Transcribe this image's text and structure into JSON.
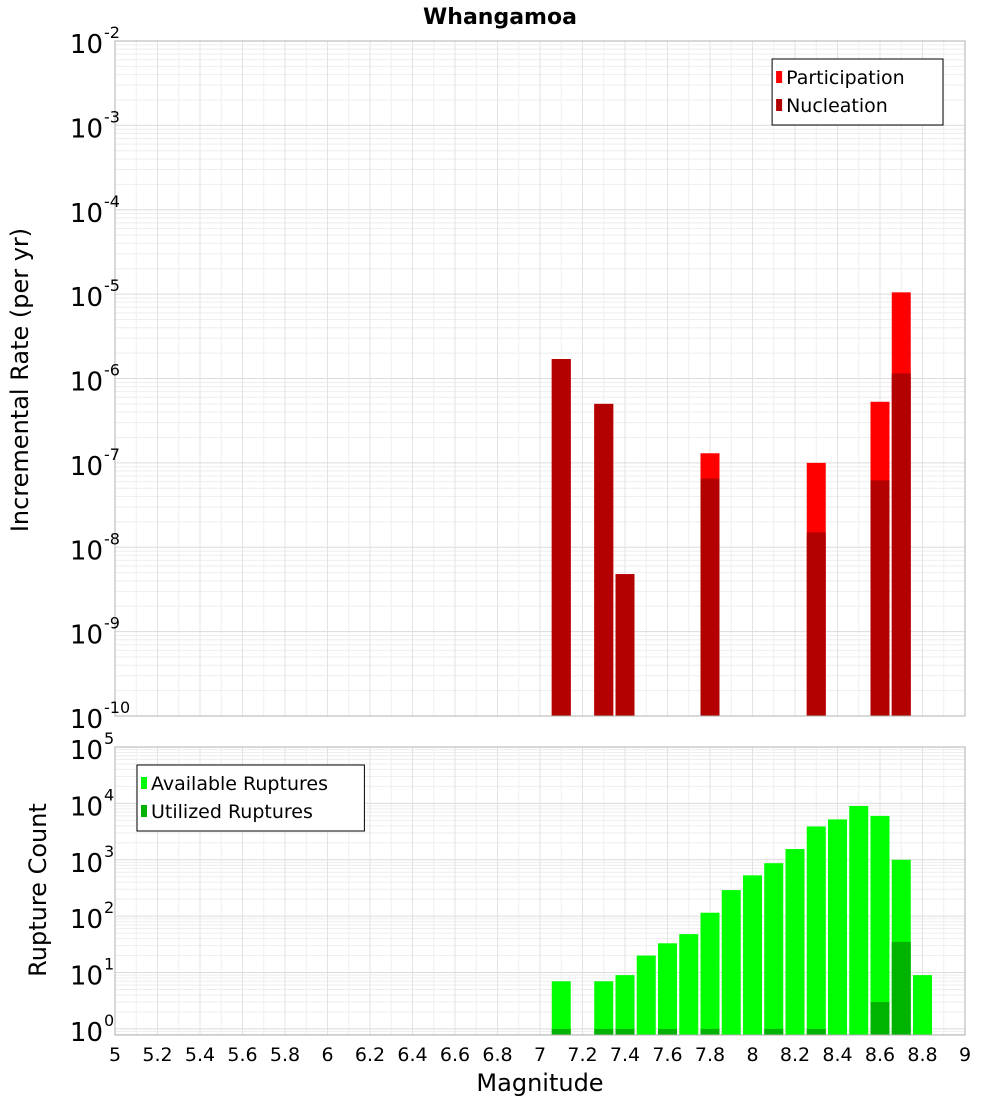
{
  "chart_data": [
    {
      "type": "bar",
      "title": "Whangamoa",
      "ylabel": "Incremental Rate (per yr)",
      "xlabel": "",
      "yscale": "log",
      "ylim": [
        1e-10,
        0.01
      ],
      "xlim": [
        5,
        9
      ],
      "ytick_exponents": [
        -10,
        -9,
        -8,
        -7,
        -6,
        -5,
        -4,
        -3,
        -2
      ],
      "grid": true,
      "legend": {
        "position": "top-right",
        "entries": [
          {
            "label": "Participation",
            "color": "#ff0000"
          },
          {
            "label": "Nucleation",
            "color": "#b30000"
          }
        ]
      },
      "series": [
        {
          "name": "Participation",
          "color": "#ff0000",
          "x": [
            7.1,
            7.3,
            7.4,
            7.8,
            8.3,
            8.6,
            8.7
          ],
          "values": [
            1.7e-06,
            5e-07,
            4.8e-09,
            1.3e-07,
            1e-07,
            5.3e-07,
            1.05e-05
          ]
        },
        {
          "name": "Nucleation",
          "color": "#b30000",
          "x": [
            7.1,
            7.3,
            7.4,
            7.8,
            8.3,
            8.6,
            8.7
          ],
          "values": [
            1.7e-06,
            5e-07,
            4.8e-09,
            6.5e-08,
            1.5e-08,
            6.2e-08,
            1.15e-06
          ]
        }
      ]
    },
    {
      "type": "bar",
      "title": "",
      "ylabel": "Rupture Count",
      "xlabel": "Magnitude",
      "yscale": "log",
      "ylim": [
        0.78,
        100000
      ],
      "xlim": [
        5,
        9
      ],
      "xticks": [
        "5",
        "5.2",
        "5.4",
        "5.6",
        "5.8",
        "6",
        "6.2",
        "6.4",
        "6.6",
        "6.8",
        "7",
        "7.2",
        "7.4",
        "7.6",
        "7.8",
        "8",
        "8.2",
        "8.4",
        "8.6",
        "8.8",
        "9"
      ],
      "ytick_exponents": [
        0,
        1,
        2,
        3,
        4,
        5
      ],
      "grid": true,
      "legend": {
        "position": "top-left",
        "entries": [
          {
            "label": "Available Ruptures",
            "color": "#00ff00"
          },
          {
            "label": "Utilized Ruptures",
            "color": "#00b300"
          }
        ]
      },
      "series": [
        {
          "name": "Available Ruptures",
          "color": "#00ff00",
          "x": [
            7.1,
            7.3,
            7.4,
            7.5,
            7.6,
            7.7,
            7.8,
            7.9,
            8.0,
            8.1,
            8.2,
            8.3,
            8.4,
            8.5,
            8.6,
            8.7,
            8.8
          ],
          "values": [
            7,
            7,
            9,
            20,
            33,
            48,
            115,
            290,
            530,
            870,
            1550,
            3900,
            5200,
            9000,
            6000,
            1000,
            9
          ]
        },
        {
          "name": "Utilized Ruptures",
          "color": "#00b300",
          "x": [
            7.1,
            7.3,
            7.4,
            7.6,
            7.8,
            8.1,
            8.3,
            8.6,
            8.7
          ],
          "values": [
            1,
            1,
            1,
            1,
            1,
            1,
            1,
            3,
            35
          ]
        }
      ]
    }
  ]
}
